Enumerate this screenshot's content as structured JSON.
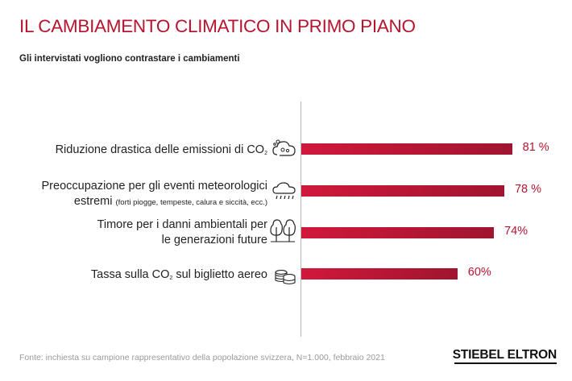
{
  "header": {
    "title": "IL CAMBIAMENTO CLIMATICO IN PRIMO PIANO",
    "subtitle": "Gli intervistati vogliono contrastare i cambiamenti"
  },
  "chart_data": {
    "type": "bar",
    "orientation": "horizontal",
    "categories": [
      "Riduzione drastica delle emissioni di CO2",
      "Preoccupazione per gli eventi meteorologici estremi (forti piogge, tempeste, calura e siccità, ecc.)",
      "Timore per i danni ambientali per le generazioni future",
      "Tassa sulla CO2 sul biglietto aereo"
    ],
    "values": [
      81,
      78,
      74,
      60
    ],
    "value_labels": [
      "81 %",
      "78 %",
      "74%",
      "60%"
    ],
    "unit": "%",
    "xlim": [
      0,
      100
    ],
    "grid": false,
    "legend": "none",
    "bar_color_start": "#d0183a",
    "bar_color_end": "#a0152f",
    "icons": [
      "cloud-co2-icon",
      "rain-cloud-icon",
      "trees-icon",
      "coins-icon"
    ]
  },
  "labels": {
    "row1": {
      "text": "Riduzione drastica delle emissioni di CO",
      "sub": "2"
    },
    "row2": {
      "line1": "Preoccupazione per gli eventi meteorologici",
      "line2_main": "estremi ",
      "line2_small": "(forti piogge, tempeste, calura e siccità, ecc.)"
    },
    "row3": {
      "line1": "Timore per i danni ambientali per",
      "line2": "le generazioni future"
    },
    "row4": {
      "pre": "Tassa sulla CO",
      "sub": "2",
      "post": " sul biglietto aereo"
    }
  },
  "footer": {
    "source": "Fonte: inchiesta su campione rappresentativo della popolazione svizzera, N=1.000, febbraio 2021",
    "brand": "STIEBEL ELTRON"
  },
  "colors": {
    "accent": "#b5152f",
    "text": "#222222",
    "muted": "#9a9a9a"
  }
}
